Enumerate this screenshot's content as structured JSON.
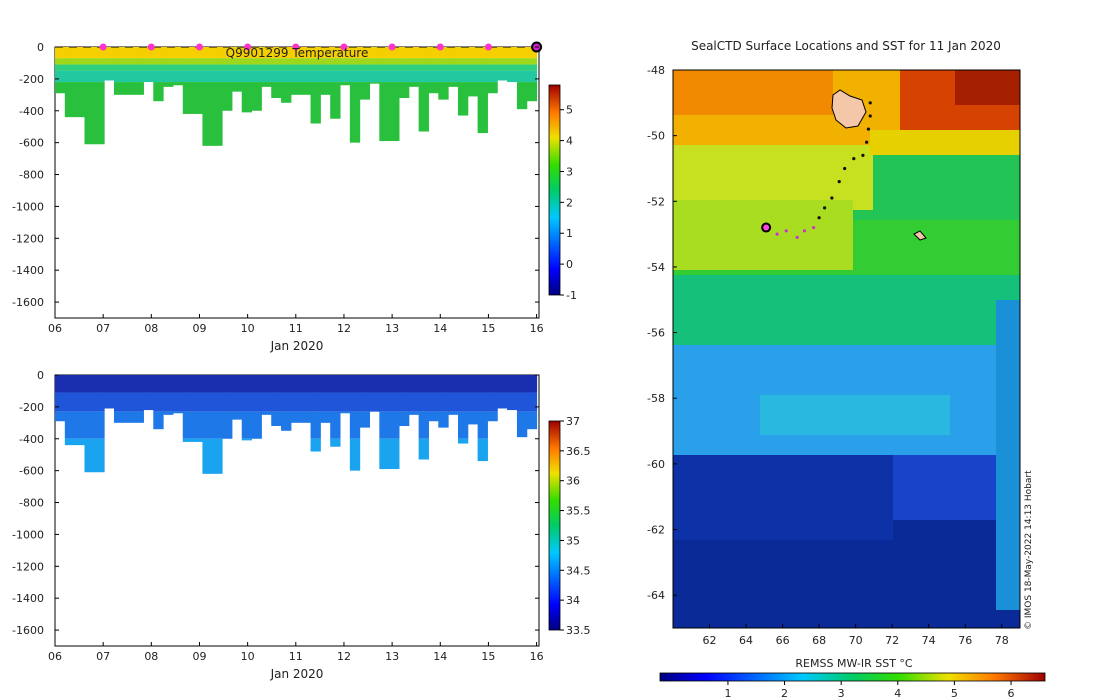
{
  "chart_data": [
    {
      "type": "heatmap",
      "title": "Q9901299  Temperature",
      "xlabel": "Jan 2020",
      "x_ticks": [
        "06",
        "07",
        "08",
        "09",
        "10",
        "11",
        "12",
        "13",
        "14",
        "15",
        "16"
      ],
      "x_range": [
        6,
        16.05
      ],
      "y_ticks": [
        0,
        -200,
        -400,
        -600,
        -800,
        -1000,
        -1200,
        -1400,
        -1600
      ],
      "ylim": [
        -1700,
        0
      ],
      "colorbar": {
        "min": -1,
        "max": 5.8,
        "ticks": [
          -1,
          0,
          1,
          2,
          3,
          4,
          5
        ]
      },
      "profile_depths": [
        -290,
        -440,
        -440,
        -610,
        -610,
        -210,
        -300,
        -300,
        -300,
        -220,
        -340,
        -250,
        -240,
        -420,
        -420,
        -620,
        -620,
        -400,
        -280,
        -410,
        -400,
        -250,
        -320,
        -350,
        -300,
        -300,
        -480,
        -300,
        -450,
        -240,
        -600,
        -330,
        -230,
        -590,
        -590,
        -320,
        -250,
        -530,
        -290,
        -330,
        -250,
        -430,
        -310,
        -540,
        -290,
        -210,
        -220,
        -390,
        -340
      ],
      "surface_markers": [
        7,
        8,
        9,
        10,
        11,
        12,
        13,
        14,
        15
      ],
      "last_profile_marker": 16
    },
    {
      "type": "heatmap",
      "title": "",
      "xlabel": "Jan 2020",
      "x_ticks": [
        "06",
        "07",
        "08",
        "09",
        "10",
        "11",
        "12",
        "13",
        "14",
        "15",
        "16"
      ],
      "x_range": [
        6,
        16.05
      ],
      "y_ticks": [
        0,
        -200,
        -400,
        -600,
        -800,
        -1000,
        -1200,
        -1400,
        -1600
      ],
      "ylim": [
        -1700,
        0
      ],
      "colorbar": {
        "min": 33.5,
        "max": 37,
        "ticks": [
          "33.5",
          "34",
          "34.5",
          "35",
          "35.5",
          "36",
          "36.5",
          "37"
        ]
      }
    },
    {
      "type": "map",
      "title": "SealCTD Surface Locations and SST for 11 Jan 2020",
      "x_ticks": [
        62,
        64,
        66,
        68,
        70,
        72,
        74,
        76,
        78
      ],
      "y_ticks": [
        -48,
        -50,
        -52,
        -54,
        -56,
        -58,
        -60,
        -62,
        -64
      ],
      "xlim": [
        60,
        79
      ],
      "ylim": [
        -65,
        -48
      ],
      "colorbar": {
        "label": "REMSS MW-IR SST °C",
        "min": -0.2,
        "max": 6.6,
        "ticks": [
          1,
          2,
          3,
          4,
          5,
          6
        ]
      },
      "track": [
        [
          65.1,
          -52.8
        ],
        [
          65.7,
          -53.0
        ],
        [
          66.2,
          -52.9
        ],
        [
          66.8,
          -53.1
        ],
        [
          67.2,
          -52.9
        ],
        [
          67.7,
          -52.8
        ],
        [
          68.0,
          -52.5
        ],
        [
          68.3,
          -52.2
        ],
        [
          68.7,
          -51.9
        ],
        [
          69.1,
          -51.4
        ],
        [
          69.4,
          -51.0
        ],
        [
          69.9,
          -50.7
        ],
        [
          70.4,
          -50.6
        ],
        [
          70.6,
          -50.2
        ],
        [
          70.7,
          -49.8
        ],
        [
          70.8,
          -49.4
        ],
        [
          70.8,
          -49.0
        ]
      ],
      "current_position": [
        65.1,
        -52.8
      ],
      "credit": "© IMOS 18-May-2022 14:13 Hobart"
    }
  ]
}
